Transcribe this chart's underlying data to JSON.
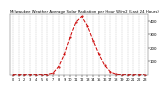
{
  "title": "Milwaukee Weather Average Solar Radiation per Hour W/m2 (Last 24 Hours)",
  "hours": [
    0,
    1,
    2,
    3,
    4,
    5,
    6,
    7,
    8,
    9,
    10,
    11,
    12,
    13,
    14,
    15,
    16,
    17,
    18,
    19,
    20,
    21,
    22,
    23
  ],
  "values": [
    0,
    0,
    0,
    0,
    0,
    0,
    1,
    10,
    60,
    150,
    280,
    390,
    430,
    360,
    250,
    150,
    70,
    20,
    2,
    0,
    0,
    0,
    0,
    0
  ],
  "line_color": "#cc0000",
  "bg_color": "#ffffff",
  "grid_color": "#aaaaaa",
  "ylim": [
    0,
    450
  ],
  "yticks": [
    100,
    200,
    300,
    400
  ],
  "ytick_labels": [
    "1\n0\n0",
    "2\n0\n0",
    "3\n0\n0",
    "4\n0\n0"
  ],
  "ylabel_fontsize": 2.8,
  "xlabel_fontsize": 2.5,
  "title_fontsize": 2.8,
  "line_width": 0.7,
  "marker_size": 1.0
}
